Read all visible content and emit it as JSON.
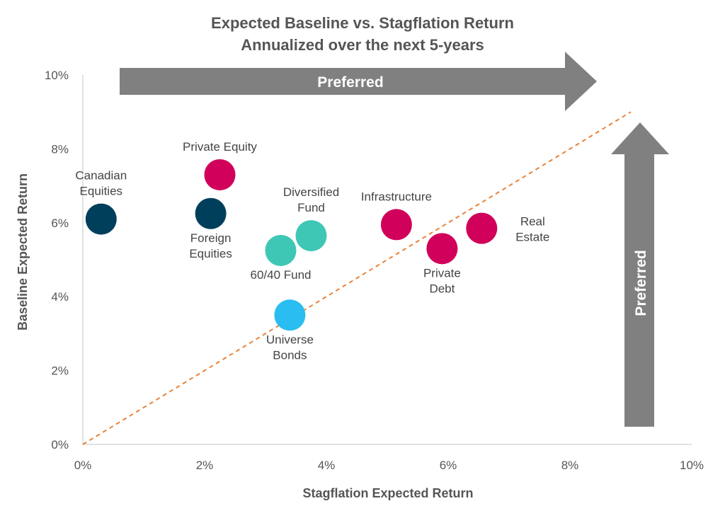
{
  "colors": {
    "text": "#555555",
    "axis": "#d9d9d9",
    "arrow": "#808080",
    "arrow_text": "#ffffff",
    "reference_line": "#e8833a"
  },
  "chart_data": {
    "type": "scatter",
    "title": "Expected Baseline vs. Stagflation Return",
    "subtitle": "Annualized over the next 5-years",
    "xlabel": "Stagflation Expected Return",
    "ylabel": "Baseline Expected Return",
    "xlim": [
      0,
      10
    ],
    "ylim": [
      0,
      10
    ],
    "x_ticks": [
      "0%",
      "2%",
      "4%",
      "6%",
      "8%",
      "10%"
    ],
    "y_ticks": [
      "0%",
      "2%",
      "4%",
      "6%",
      "8%",
      "10%"
    ],
    "grid": false,
    "reference_line": {
      "style": "dashed",
      "from": [
        0,
        0
      ],
      "to": [
        9,
        9
      ]
    },
    "arrows": {
      "horizontal_label": "Preferred",
      "vertical_label": "Preferred"
    },
    "points": [
      {
        "label": [
          "Canadian",
          "Equities"
        ],
        "x": 0.3,
        "y": 6.1,
        "color": "#003f5c",
        "label_pos": "above"
      },
      {
        "label": [
          "Private Equity"
        ],
        "x": 2.25,
        "y": 7.3,
        "color": "#d1005a",
        "label_pos": "above"
      },
      {
        "label": [
          "Foreign",
          "Equities"
        ],
        "x": 2.1,
        "y": 6.25,
        "color": "#003f5c",
        "label_pos": "below"
      },
      {
        "label": [
          "Diversified",
          "Fund"
        ],
        "x": 3.75,
        "y": 5.65,
        "color": "#3ec7b5",
        "label_pos": "above"
      },
      {
        "label": [
          "60/40 Fund"
        ],
        "x": 3.25,
        "y": 5.25,
        "color": "#3ec7b5",
        "label_pos": "below"
      },
      {
        "label": [
          "Universe",
          "Bonds"
        ],
        "x": 3.4,
        "y": 3.5,
        "color": "#29bdf2",
        "label_pos": "below"
      },
      {
        "label": [
          "Infrastructure"
        ],
        "x": 5.15,
        "y": 5.95,
        "color": "#d1005a",
        "label_pos": "above"
      },
      {
        "label": [
          "Private",
          "Debt"
        ],
        "x": 5.9,
        "y": 5.3,
        "color": "#d1005a",
        "label_pos": "below"
      },
      {
        "label": [
          "Real",
          "Estate"
        ],
        "x": 6.55,
        "y": 5.85,
        "color": "#d1005a",
        "label_pos": "right"
      }
    ]
  }
}
